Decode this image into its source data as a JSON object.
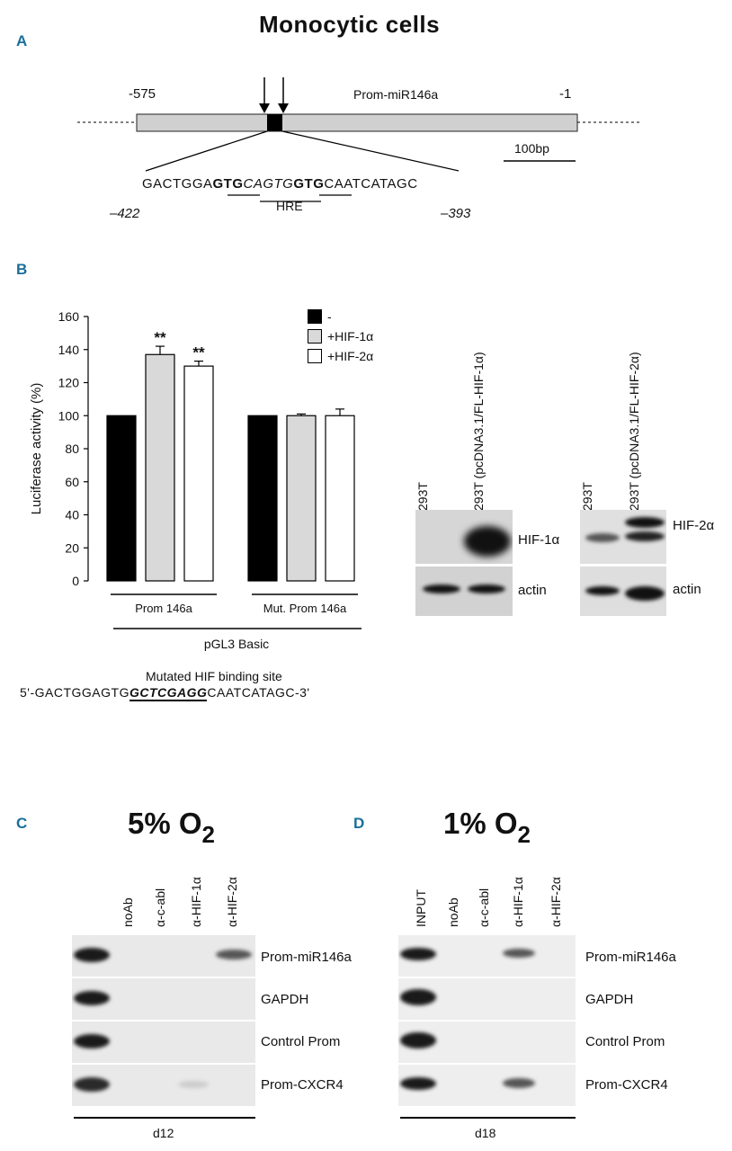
{
  "figure_title": "Monocytic cells",
  "panels": {
    "a": "A",
    "b": "B",
    "c": "C",
    "d": "D"
  },
  "panel_a": {
    "promoter_label": "Prom-miR146a",
    "start_label": "-575",
    "end_label": "-1",
    "scale_label": "100bp",
    "seq_prefix": "GACTGGA",
    "seq_bold1": "GTG",
    "seq_italic": "CAGTG",
    "seq_bold2": "GTG",
    "seq_suffix": "CAATCATAGC",
    "hre_label": "HRE",
    "left_coord": "–422",
    "right_coord": "–393"
  },
  "chart_data": {
    "type": "bar",
    "ylabel": "Luciferase activity (%)",
    "ylim": [
      0,
      160
    ],
    "yticks": [
      "160",
      "140",
      "120",
      "100",
      "80",
      "60",
      "40",
      "20",
      "0"
    ],
    "groups": [
      "Prom 146a",
      "Mut. Prom 146a"
    ],
    "super_group": "pGL3 Basic",
    "series": [
      {
        "name": "-",
        "color": "#000000",
        "values": [
          100,
          100
        ],
        "errors": [
          0,
          0
        ]
      },
      {
        "name": "+HIF-1α",
        "color": "#d9d9d9",
        "values": [
          137,
          100
        ],
        "errors": [
          5,
          1
        ]
      },
      {
        "name": "+HIF-2α",
        "color": "#ffffff",
        "values": [
          130,
          100
        ],
        "errors": [
          3,
          4
        ]
      }
    ],
    "significance": [
      "**",
      "**"
    ]
  },
  "blots": {
    "hif1_lanes": [
      "293T",
      "293T (pcDNA3.1/FL-HIF-1α)"
    ],
    "hif2_lanes": [
      "293T",
      "293T (pcDNA3.1/FL-HIF-2α)"
    ],
    "hif1_label": "HIF-1α",
    "hif2_label": "HIF-2α",
    "actin_label": "actin"
  },
  "mutated_site": {
    "title": "Mutated HIF binding site",
    "prefix": "5'-GACTGGAGTG",
    "mut": "GCTCGAGG",
    "suffix": "CAATCATAGC-3'"
  },
  "chip": {
    "c_condition": "5% O",
    "d_condition": "1% O",
    "subscript": "2",
    "c_lanes": [
      "noAb",
      "α-c-abl",
      "α-HIF-1α",
      "α-HIF-2α"
    ],
    "d_lanes": [
      "INPUT",
      "noAb",
      "α-c-abl",
      "α-HIF-1α",
      "α-HIF-2α"
    ],
    "rows": [
      "Prom-miR146a",
      "GAPDH",
      "Control Prom",
      "Prom-CXCR4"
    ],
    "c_day": "d12",
    "d_day": "d18"
  }
}
